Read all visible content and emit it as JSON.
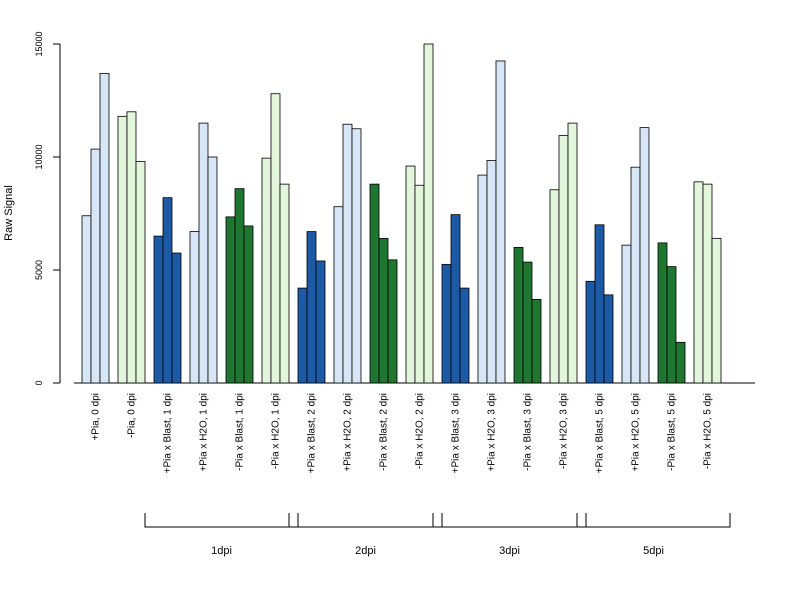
{
  "chart_data": {
    "type": "bar",
    "ylabel": "Raw Signal",
    "ylim": [
      0,
      15000
    ],
    "yticks": [
      0,
      5000,
      10000,
      15000
    ],
    "grid": false,
    "legend": "none",
    "colors": {
      "light_blue": "#d6e6f7",
      "dark_blue": "#1c5aa6",
      "dark_green": "#1e7631",
      "light_green": "#e3f5da"
    },
    "groups": [
      {
        "label": "+Pia, 0 dpi",
        "color": "light_blue",
        "values": [
          7400,
          10350,
          13700
        ]
      },
      {
        "label": "-Pia, 0 dpi",
        "color": "light_green",
        "values": [
          11800,
          12000,
          9800
        ]
      },
      {
        "label": "+Pia x Blast, 1 dpi",
        "color": "dark_blue",
        "values": [
          6500,
          8200,
          5750
        ]
      },
      {
        "label": "+Pia x H2O, 1 dpi",
        "color": "light_blue",
        "values": [
          6700,
          11500,
          10000
        ]
      },
      {
        "label": "-Pia x Blast, 1 dpi",
        "color": "dark_green",
        "values": [
          7350,
          8600,
          6950
        ]
      },
      {
        "label": "-Pia x H2O, 1 dpi",
        "color": "light_green",
        "values": [
          9950,
          12800,
          8800
        ]
      },
      {
        "label": "+Pia x Blast, 2 dpi",
        "color": "dark_blue",
        "values": [
          4200,
          6700,
          5400
        ]
      },
      {
        "label": "+Pia x H2O, 2 dpi",
        "color": "light_blue",
        "values": [
          7800,
          11450,
          11250
        ]
      },
      {
        "label": "-Pia x Blast, 2 dpi",
        "color": "dark_green",
        "values": [
          8800,
          6400,
          5450
        ]
      },
      {
        "label": "-Pia x H2O, 2 dpi",
        "color": "light_green",
        "values": [
          9600,
          8750,
          15000
        ]
      },
      {
        "label": "+Pia x Blast, 3 dpi",
        "color": "dark_blue",
        "values": [
          5250,
          7450,
          4200
        ]
      },
      {
        "label": "+Pia x H2O, 3 dpi",
        "color": "light_blue",
        "values": [
          9200,
          9850,
          14250
        ]
      },
      {
        "label": "-Pia x Blast, 3 dpi",
        "color": "dark_green",
        "values": [
          6000,
          5350,
          3700
        ]
      },
      {
        "label": "-Pia x H2O, 3 dpi",
        "color": "light_green",
        "values": [
          8550,
          10950,
          11500
        ]
      },
      {
        "label": "+Pia x Blast, 5 dpi",
        "color": "dark_blue",
        "values": [
          4500,
          7000,
          3900
        ]
      },
      {
        "label": "+Pia x H2O, 5 dpi",
        "color": "light_blue",
        "values": [
          6100,
          9550,
          11300
        ]
      },
      {
        "label": "-Pia x Blast, 5 dpi",
        "color": "dark_green",
        "values": [
          6200,
          5150,
          1800
        ]
      },
      {
        "label": "-Pia x H2O, 5 dpi",
        "color": "light_green",
        "values": [
          8900,
          8800,
          6400
        ]
      }
    ],
    "brackets": [
      {
        "label": "1dpi",
        "from_group": 2,
        "to_group": 5
      },
      {
        "label": "2dpi",
        "from_group": 6,
        "to_group": 9
      },
      {
        "label": "3dpi",
        "from_group": 10,
        "to_group": 13
      },
      {
        "label": "5dpi",
        "from_group": 14,
        "to_group": 17
      }
    ]
  }
}
